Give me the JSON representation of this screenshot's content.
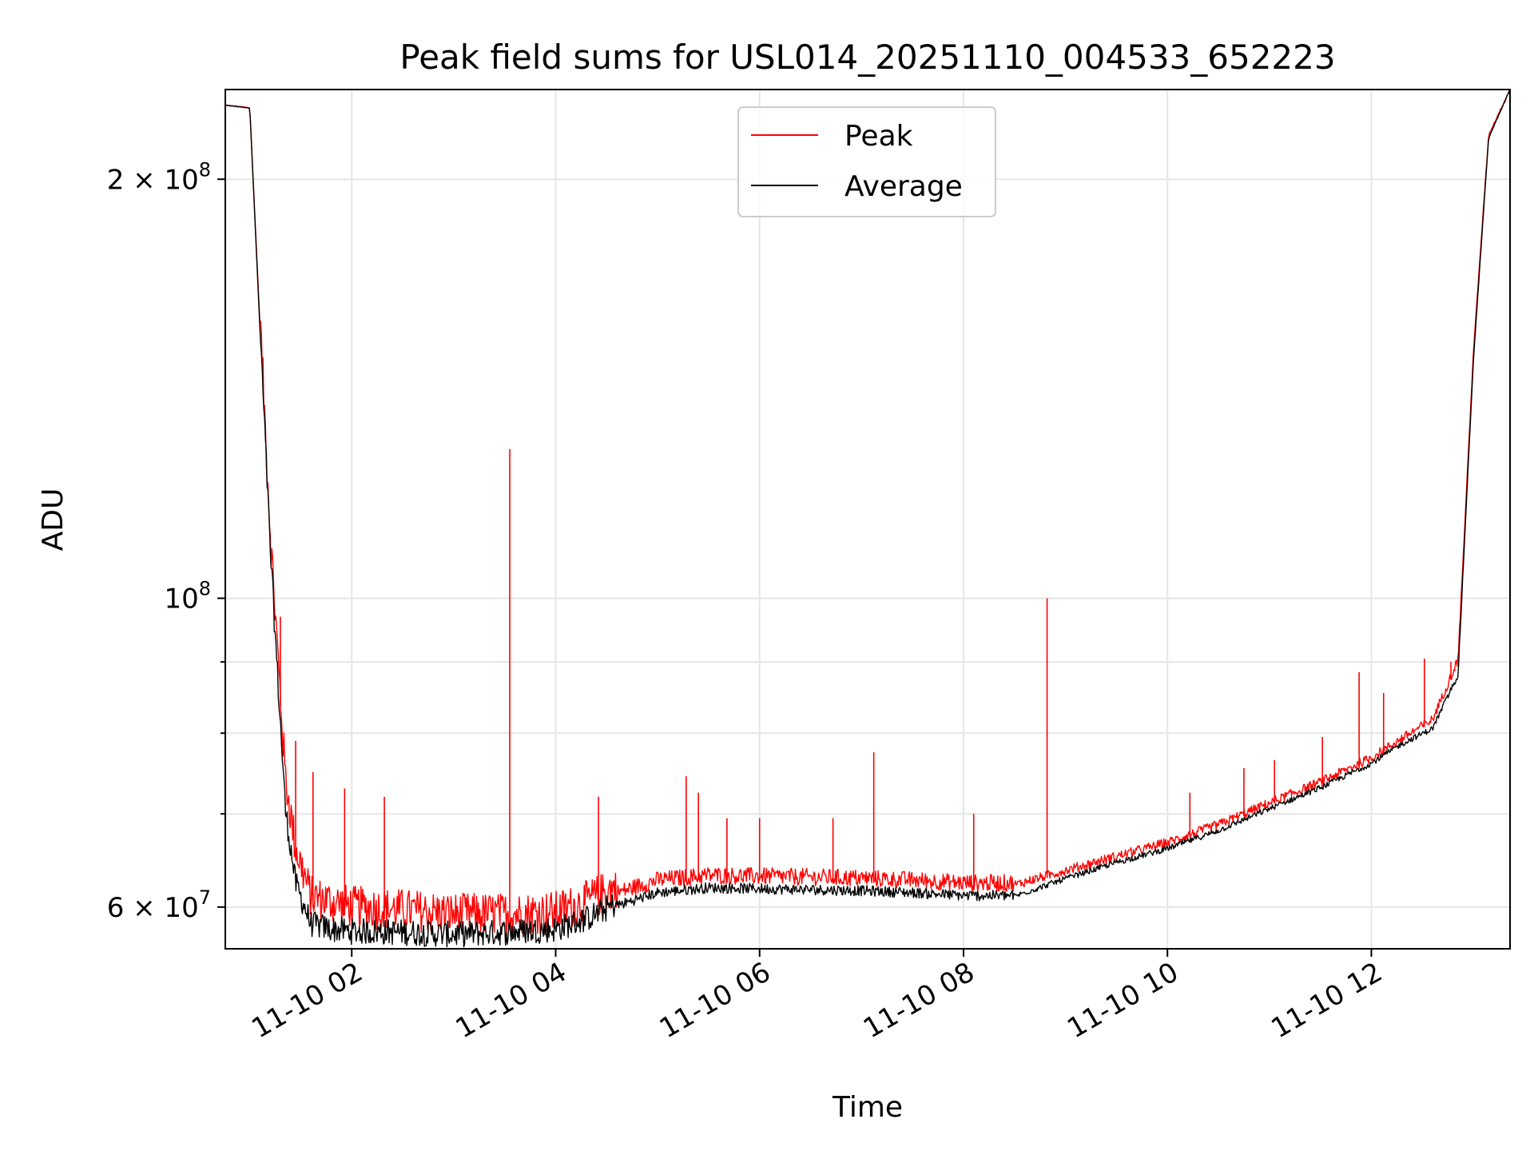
{
  "chart_data": {
    "type": "line",
    "title": "Peak field sums for USL014_20251110_004533_652223",
    "xlabel": "Time",
    "ylabel": "ADU",
    "yscale": "log",
    "xlim_hours": [
      0.76,
      13.36
    ],
    "ylim": [
      56000000,
      232000000
    ],
    "grid": true,
    "legend_position": "upper center",
    "x_ticks": [
      {
        "hour": 2,
        "label": "11-10 02"
      },
      {
        "hour": 4,
        "label": "11-10 04"
      },
      {
        "hour": 6,
        "label": "11-10 06"
      },
      {
        "hour": 8,
        "label": "11-10 08"
      },
      {
        "hour": 10,
        "label": "11-10 10"
      },
      {
        "hour": 12,
        "label": "11-10 12"
      }
    ],
    "y_major_ticks": [
      {
        "value": 60000000,
        "base": "6 × 10",
        "exp": "7"
      },
      {
        "value": 100000000,
        "base": "10",
        "exp": "8"
      },
      {
        "value": 200000000,
        "base": "2 × 10",
        "exp": "8"
      }
    ],
    "y_minor_ticks": [
      70000000,
      80000000,
      90000000
    ],
    "series": [
      {
        "name": "Peak",
        "color": "#ff0000",
        "x_hours": [
          0.76,
          1.0,
          1.2,
          1.35,
          1.45,
          1.6,
          1.8,
          2.0,
          2.5,
          3.0,
          3.5,
          4.0,
          4.3,
          4.6,
          5.0,
          5.5,
          6.0,
          6.5,
          7.0,
          7.5,
          8.0,
          8.5,
          9.0,
          9.5,
          10.0,
          10.5,
          11.0,
          11.5,
          12.0,
          12.3,
          12.6,
          12.85,
          13.0,
          13.15,
          13.36
        ],
        "values": [
          226000000,
          225000000,
          110000000,
          73000000,
          65000000,
          60000000,
          59500000,
          59000000,
          58700000,
          58300000,
          58300000,
          58500000,
          59500000,
          61000000,
          62300000,
          62800000,
          62700000,
          62600000,
          62500000,
          62300000,
          62000000,
          62000000,
          63500000,
          65000000,
          66500000,
          68500000,
          71000000,
          73500000,
          76500000,
          79000000,
          81500000,
          90000000,
          150000000,
          215000000,
          232000000
        ],
        "spikes": [
          {
            "hour": 1.3,
            "value": 97000000
          },
          {
            "hour": 1.45,
            "value": 79000000
          },
          {
            "hour": 1.62,
            "value": 75000000
          },
          {
            "hour": 1.93,
            "value": 73000000
          },
          {
            "hour": 2.32,
            "value": 72000000
          },
          {
            "hour": 3.55,
            "value": 128000000
          },
          {
            "hour": 4.42,
            "value": 72000000
          },
          {
            "hour": 5.28,
            "value": 74500000
          },
          {
            "hour": 5.4,
            "value": 72500000
          },
          {
            "hour": 5.68,
            "value": 69500000
          },
          {
            "hour": 6.0,
            "value": 69500000
          },
          {
            "hour": 6.72,
            "value": 69500000
          },
          {
            "hour": 7.12,
            "value": 77500000
          },
          {
            "hour": 8.1,
            "value": 70000000
          },
          {
            "hour": 8.82,
            "value": 100000000
          },
          {
            "hour": 10.22,
            "value": 72500000
          },
          {
            "hour": 10.75,
            "value": 75500000
          },
          {
            "hour": 11.05,
            "value": 76500000
          },
          {
            "hour": 11.52,
            "value": 79500000
          },
          {
            "hour": 11.88,
            "value": 88500000
          },
          {
            "hour": 12.12,
            "value": 85500000
          },
          {
            "hour": 12.52,
            "value": 90500000
          },
          {
            "hour": 12.78,
            "value": 90000000
          }
        ]
      },
      {
        "name": "Average",
        "color": "#000000",
        "x_hours": [
          0.76,
          1.0,
          1.2,
          1.35,
          1.45,
          1.6,
          1.8,
          2.0,
          2.5,
          3.0,
          3.5,
          4.0,
          4.3,
          4.6,
          5.0,
          5.5,
          6.0,
          6.5,
          7.0,
          7.5,
          8.0,
          8.5,
          9.0,
          9.5,
          10.0,
          10.5,
          11.0,
          11.5,
          12.0,
          12.3,
          12.6,
          12.85,
          13.0,
          13.15,
          13.36
        ],
        "values": [
          226000000,
          225000000,
          108000000,
          70000000,
          62000000,
          58000000,
          57500000,
          57300000,
          57200000,
          57000000,
          57200000,
          57500000,
          58500000,
          60000000,
          61300000,
          61800000,
          61700000,
          61600000,
          61500000,
          61300000,
          61000000,
          61000000,
          62800000,
          64500000,
          66000000,
          68000000,
          70500000,
          73000000,
          76000000,
          78500000,
          80500000,
          88000000,
          148000000,
          214000000,
          232000000
        ]
      }
    ]
  }
}
